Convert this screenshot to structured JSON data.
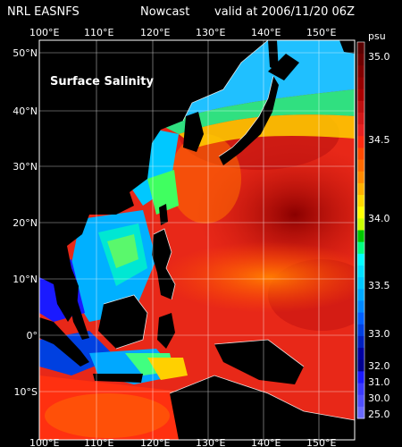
{
  "header": {
    "source": "NRL EASNFS",
    "product": "Nowcast",
    "valid_text": "valid at 2006/11/20 06Z"
  },
  "map": {
    "label": "Surface Salinity",
    "lon_labels": [
      "100°E",
      "110°E",
      "120°E",
      "130°E",
      "140°E",
      "150°E"
    ],
    "lat_labels": [
      "50°N",
      "40°N",
      "30°N",
      "20°N",
      "10°N",
      "0°",
      "10°S"
    ],
    "colors": {
      "land": "#000000",
      "grid": "#ffffff",
      "coast": "#ffffff"
    }
  },
  "colorbar": {
    "unit": "psu",
    "tick_labels": [
      "35.0",
      "34.5",
      "34.0",
      "33.5",
      "33.0",
      "32.0",
      "31.0",
      "30.0",
      "25.0"
    ],
    "colors": [
      "#5a0000",
      "#6e0000",
      "#820000",
      "#960000",
      "#aa0000",
      "#be1010",
      "#d21818",
      "#e62020",
      "#ff2a10",
      "#ff4a00",
      "#ff6a00",
      "#ff8a00",
      "#ffb000",
      "#ffd800",
      "#ffff00",
      "#c8ff00",
      "#00c800",
      "#00ff80",
      "#00ffff",
      "#00e0ff",
      "#00c8ff",
      "#00a8ff",
      "#0088ff",
      "#0060ff",
      "#0040e0",
      "#0020c0",
      "#0000a0",
      "#000090",
      "#1a1aff",
      "#3a3aff",
      "#5050ff",
      "#6a6aff"
    ]
  }
}
